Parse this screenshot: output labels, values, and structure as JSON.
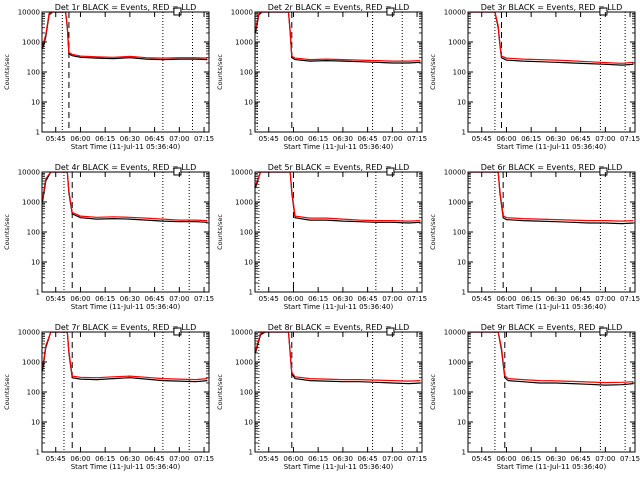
{
  "chart_data": [
    {
      "type": "line",
      "title": "Det 1r BLACK = Events, RED = LLD",
      "xlabel": "Start Time (11-Jul-11 05:36:40)",
      "ylabel": "Counts/sec",
      "yscale": "log",
      "ylim": [
        1,
        10000
      ],
      "xlim": [
        "05:36:40",
        "07:18:00"
      ],
      "xticks": [
        "05:45",
        "06:00",
        "06:15",
        "06:30",
        "06:45",
        "07:00",
        "07:15"
      ],
      "yticks": [
        "1",
        "10",
        "100",
        "1000",
        "10000"
      ],
      "markers": {
        "dotted": [
          "05:49",
          "06:50",
          "07:08"
        ],
        "dashed": [
          "05:53"
        ]
      },
      "series": [
        {
          "color": "#000000",
          "x": [
            "05:37",
            "05:39",
            "05:41",
            "05:43",
            "05:49",
            "05:51",
            "05:52",
            "05:53",
            "05:55",
            "06:00",
            "06:10",
            "06:20",
            "06:30",
            "06:40",
            "06:50",
            "07:00",
            "07:10",
            "07:17"
          ],
          "values": [
            600,
            1500,
            8000,
            10000,
            10000,
            10000,
            3000,
            400,
            350,
            310,
            290,
            280,
            300,
            270,
            260,
            270,
            270,
            260
          ]
        },
        {
          "color": "#ff0000",
          "x": [
            "05:37",
            "05:39",
            "05:41",
            "05:43",
            "05:49",
            "05:51",
            "05:52",
            "05:53",
            "05:55",
            "06:00",
            "06:10",
            "06:20",
            "06:30",
            "06:40",
            "06:50",
            "07:00",
            "07:10",
            "07:17"
          ],
          "values": [
            700,
            1800,
            9000,
            10000,
            10000,
            10000,
            3500,
            450,
            390,
            340,
            320,
            310,
            330,
            300,
            290,
            300,
            300,
            290
          ]
        }
      ]
    },
    {
      "type": "line",
      "title": "Det 2r BLACK = Events, RED = LLD",
      "xlabel": "Start Time (11-Jul-11 05:36:40)",
      "ylabel": "Counts/sec",
      "yscale": "log",
      "ylim": [
        1,
        10000
      ],
      "xlim": [
        "05:36:40",
        "07:18:00"
      ],
      "xticks": [
        "05:45",
        "06:00",
        "06:15",
        "06:30",
        "06:45",
        "07:00",
        "07:15"
      ],
      "yticks": [
        "1",
        "10",
        "100",
        "1000",
        "10000"
      ],
      "markers": {
        "dotted": [
          "05:38",
          "06:48",
          "07:06"
        ],
        "dashed": [
          "05:59"
        ]
      },
      "series": [
        {
          "color": "#000000",
          "x": [
            "05:37",
            "05:39",
            "05:41",
            "05:44",
            "05:55",
            "05:57",
            "05:58",
            "05:59",
            "06:01",
            "06:10",
            "06:20",
            "06:30",
            "06:40",
            "06:50",
            "07:00",
            "07:10",
            "07:17"
          ],
          "values": [
            2000,
            8000,
            10000,
            10000,
            10000,
            10000,
            2000,
            300,
            260,
            230,
            240,
            230,
            220,
            210,
            200,
            200,
            210
          ]
        },
        {
          "color": "#ff0000",
          "x": [
            "05:37",
            "05:39",
            "05:41",
            "05:44",
            "05:55",
            "05:57",
            "05:58",
            "05:59",
            "06:01",
            "06:10",
            "06:20",
            "06:30",
            "06:40",
            "06:50",
            "07:00",
            "07:10",
            "07:17"
          ],
          "values": [
            2500,
            9000,
            10000,
            10000,
            10000,
            10000,
            2300,
            340,
            290,
            260,
            270,
            260,
            250,
            240,
            230,
            230,
            240
          ]
        }
      ]
    },
    {
      "type": "line",
      "title": "Det 3r BLACK = Events, RED = LLD",
      "xlabel": "Start Time (11-Jul-11 05:36:40)",
      "ylabel": "Counts/sec",
      "yscale": "log",
      "ylim": [
        1,
        10000
      ],
      "xlim": [
        "05:36:40",
        "07:18:00"
      ],
      "xticks": [
        "05:45",
        "06:00",
        "06:15",
        "06:30",
        "06:45",
        "07:00",
        "07:15"
      ],
      "yticks": [
        "1",
        "10",
        "100",
        "1000",
        "10000"
      ],
      "markers": {
        "dotted": [
          "05:53",
          "06:57",
          "07:12"
        ],
        "dashed": [
          "05:57"
        ]
      },
      "series": [
        {
          "color": "#000000",
          "x": [
            "05:37",
            "05:45",
            "05:50",
            "05:53",
            "05:55",
            "05:56",
            "05:57",
            "06:00",
            "06:10",
            "06:20",
            "06:30",
            "06:40",
            "06:50",
            "07:00",
            "07:10",
            "07:17"
          ],
          "values": [
            10000,
            10000,
            10000,
            10000,
            3000,
            800,
            300,
            250,
            230,
            220,
            210,
            200,
            190,
            180,
            170,
            180
          ]
        },
        {
          "color": "#ff0000",
          "x": [
            "05:37",
            "05:45",
            "05:50",
            "05:53",
            "05:55",
            "05:56",
            "05:57",
            "06:00",
            "06:10",
            "06:20",
            "06:30",
            "06:40",
            "06:50",
            "07:00",
            "07:10",
            "07:17"
          ],
          "values": [
            10000,
            10000,
            10000,
            10000,
            3500,
            900,
            340,
            290,
            270,
            260,
            250,
            235,
            220,
            205,
            195,
            210
          ]
        }
      ]
    },
    {
      "type": "line",
      "title": "Det 4r BLACK = Events, RED = LLD",
      "xlabel": "Start Time (11-Jul-11 05:36:40)",
      "ylabel": "Counts/sec",
      "yscale": "log",
      "ylim": [
        1,
        10000
      ],
      "xlim": [
        "05:36:40",
        "07:18:00"
      ],
      "xticks": [
        "05:45",
        "06:00",
        "06:15",
        "06:30",
        "06:45",
        "07:00",
        "07:15"
      ],
      "yticks": [
        "1",
        "10",
        "100",
        "1000",
        "10000"
      ],
      "markers": {
        "dotted": [
          "05:50",
          "06:50",
          "07:06"
        ],
        "dashed": [
          "05:55"
        ]
      },
      "series": [
        {
          "color": "#000000",
          "x": [
            "05:37",
            "05:39",
            "05:42",
            "05:50",
            "05:52",
            "05:53",
            "05:55",
            "06:00",
            "06:10",
            "06:20",
            "06:30",
            "06:40",
            "06:50",
            "07:00",
            "07:10",
            "07:17"
          ],
          "values": [
            1000,
            5000,
            10000,
            10000,
            10000,
            2000,
            400,
            300,
            270,
            280,
            270,
            250,
            230,
            220,
            220,
            210
          ]
        },
        {
          "color": "#ff0000",
          "x": [
            "05:37",
            "05:39",
            "05:42",
            "05:50",
            "05:52",
            "05:53",
            "05:55",
            "06:00",
            "06:10",
            "06:20",
            "06:30",
            "06:40",
            "06:50",
            "07:00",
            "07:10",
            "07:17"
          ],
          "values": [
            1200,
            6000,
            10000,
            10000,
            10000,
            2300,
            450,
            340,
            310,
            320,
            310,
            290,
            270,
            250,
            250,
            240
          ]
        }
      ]
    },
    {
      "type": "line",
      "title": "Det 5r BLACK = Events, RED = LLD",
      "xlabel": "Start Time (11-Jul-11 05:36:40)",
      "ylabel": "Counts/sec",
      "yscale": "log",
      "ylim": [
        1,
        10000
      ],
      "xlim": [
        "05:36:40",
        "07:18:00"
      ],
      "xticks": [
        "05:45",
        "06:00",
        "06:15",
        "06:30",
        "06:45",
        "07:00",
        "07:15"
      ],
      "yticks": [
        "1",
        "10",
        "100",
        "1000",
        "10000"
      ],
      "markers": {
        "dotted": [
          "05:39",
          "06:50",
          "07:06"
        ],
        "dashed": [
          "06:00"
        ]
      },
      "series": [
        {
          "color": "#000000",
          "x": [
            "05:37",
            "05:40",
            "05:43",
            "05:55",
            "05:58",
            "05:59",
            "06:01",
            "06:10",
            "06:20",
            "06:30",
            "06:40",
            "06:50",
            "07:00",
            "07:10",
            "07:17"
          ],
          "values": [
            3000,
            10000,
            10000,
            10000,
            10000,
            2000,
            300,
            250,
            250,
            230,
            220,
            210,
            210,
            200,
            210
          ]
        },
        {
          "color": "#ff0000",
          "x": [
            "05:37",
            "05:40",
            "05:43",
            "05:55",
            "05:58",
            "05:59",
            "06:01",
            "06:10",
            "06:20",
            "06:30",
            "06:40",
            "06:50",
            "07:00",
            "07:10",
            "07:17"
          ],
          "values": [
            3500,
            10000,
            10000,
            10000,
            10000,
            2300,
            340,
            290,
            290,
            270,
            250,
            240,
            240,
            230,
            240
          ]
        }
      ]
    },
    {
      "type": "line",
      "title": "Det 6r BLACK = Events, RED = LLD",
      "xlabel": "Start Time (11-Jul-11 05:36:40)",
      "ylabel": "Counts/sec",
      "yscale": "log",
      "ylim": [
        1,
        10000
      ],
      "xlim": [
        "05:36:40",
        "07:18:00"
      ],
      "xticks": [
        "05:45",
        "06:00",
        "06:15",
        "06:30",
        "06:45",
        "07:00",
        "07:15"
      ],
      "yticks": [
        "1",
        "10",
        "100",
        "1000",
        "10000"
      ],
      "markers": {
        "dotted": [
          "05:53",
          "06:57",
          "07:12"
        ],
        "dashed": [
          "05:58"
        ]
      },
      "series": [
        {
          "color": "#000000",
          "x": [
            "05:37",
            "05:45",
            "05:53",
            "05:55",
            "05:56",
            "05:58",
            "06:00",
            "06:10",
            "06:20",
            "06:30",
            "06:40",
            "06:50",
            "07:00",
            "07:10",
            "07:17"
          ],
          "values": [
            10000,
            10000,
            10000,
            10000,
            2000,
            300,
            260,
            240,
            230,
            220,
            210,
            200,
            200,
            190,
            200
          ]
        },
        {
          "color": "#ff0000",
          "x": [
            "05:37",
            "05:45",
            "05:53",
            "05:55",
            "05:56",
            "05:58",
            "06:00",
            "06:10",
            "06:20",
            "06:30",
            "06:40",
            "06:50",
            "07:00",
            "07:10",
            "07:17"
          ],
          "values": [
            10000,
            10000,
            10000,
            10000,
            2300,
            350,
            300,
            280,
            270,
            260,
            250,
            240,
            240,
            230,
            240
          ]
        }
      ]
    },
    {
      "type": "line",
      "title": "Det 7r BLACK = Events, RED = LLD",
      "xlabel": "Start Time (11-Jul-11 05:36:40)",
      "ylabel": "Counts/sec",
      "yscale": "log",
      "ylim": [
        1,
        10000
      ],
      "xlim": [
        "05:36:40",
        "07:18:00"
      ],
      "xticks": [
        "05:45",
        "06:00",
        "06:15",
        "06:30",
        "06:45",
        "07:00",
        "07:15"
      ],
      "yticks": [
        "1",
        "10",
        "100",
        "1000",
        "10000"
      ],
      "markers": {
        "dotted": [
          "05:50",
          "06:50",
          "07:06"
        ],
        "dashed": [
          "05:55"
        ]
      },
      "series": [
        {
          "color": "#000000",
          "x": [
            "05:37",
            "05:39",
            "05:42",
            "05:50",
            "05:52",
            "05:53",
            "05:55",
            "06:00",
            "06:10",
            "06:20",
            "06:30",
            "06:40",
            "06:50",
            "07:00",
            "07:10",
            "07:17"
          ],
          "values": [
            500,
            3000,
            10000,
            10000,
            10000,
            2000,
            300,
            270,
            260,
            280,
            300,
            270,
            240,
            230,
            220,
            240
          ]
        },
        {
          "color": "#ff0000",
          "x": [
            "05:37",
            "05:39",
            "05:42",
            "05:50",
            "05:52",
            "05:53",
            "05:55",
            "06:00",
            "06:10",
            "06:20",
            "06:30",
            "06:40",
            "06:50",
            "07:00",
            "07:10",
            "07:17"
          ],
          "values": [
            600,
            3500,
            10000,
            10000,
            10000,
            2300,
            340,
            310,
            300,
            320,
            340,
            310,
            280,
            270,
            260,
            280
          ]
        }
      ]
    },
    {
      "type": "line",
      "title": "Det 8r BLACK = Events, RED = LLD",
      "xlabel": "Start Time (11-Jul-11 05:36:40)",
      "ylabel": "Counts/sec",
      "yscale": "log",
      "ylim": [
        1,
        10000
      ],
      "xlim": [
        "05:36:40",
        "07:18:00"
      ],
      "xticks": [
        "05:45",
        "06:00",
        "06:15",
        "06:30",
        "06:45",
        "07:00",
        "07:15"
      ],
      "yticks": [
        "1",
        "10",
        "100",
        "1000",
        "10000"
      ],
      "markers": {
        "dotted": [
          "05:39",
          "06:48",
          "07:06"
        ],
        "dashed": [
          "05:59"
        ]
      },
      "series": [
        {
          "color": "#000000",
          "x": [
            "05:37",
            "05:40",
            "05:43",
            "05:55",
            "05:57",
            "05:59",
            "06:01",
            "06:10",
            "06:20",
            "06:30",
            "06:40",
            "06:50",
            "07:00",
            "07:10",
            "07:17"
          ],
          "values": [
            2000,
            8000,
            10000,
            10000,
            10000,
            400,
            280,
            240,
            230,
            220,
            220,
            210,
            200,
            190,
            200
          ]
        },
        {
          "color": "#ff0000",
          "x": [
            "05:37",
            "05:40",
            "05:43",
            "05:55",
            "05:57",
            "05:59",
            "06:01",
            "06:10",
            "06:20",
            "06:30",
            "06:40",
            "06:50",
            "07:00",
            "07:10",
            "07:17"
          ],
          "values": [
            2300,
            9000,
            10000,
            10000,
            10000,
            450,
            320,
            280,
            270,
            260,
            260,
            250,
            240,
            230,
            240
          ]
        }
      ]
    },
    {
      "type": "line",
      "title": "Det 9r BLACK = Events, RED = LLD",
      "xlabel": "Start Time (11-Jul-11 05:36:40)",
      "ylabel": "Counts/sec",
      "yscale": "log",
      "ylim": [
        1,
        10000
      ],
      "xlim": [
        "05:36:40",
        "07:18:00"
      ],
      "xticks": [
        "05:45",
        "06:00",
        "06:15",
        "06:30",
        "06:45",
        "07:00",
        "07:15"
      ],
      "yticks": [
        "1",
        "10",
        "100",
        "1000",
        "10000"
      ],
      "markers": {
        "dotted": [
          "05:53",
          "06:57",
          "07:12"
        ],
        "dashed": [
          "05:59"
        ]
      },
      "series": [
        {
          "color": "#000000",
          "x": [
            "05:37",
            "05:45",
            "05:53",
            "05:55",
            "05:57",
            "05:59",
            "06:01",
            "06:10",
            "06:20",
            "06:30",
            "06:40",
            "06:50",
            "07:00",
            "07:10",
            "07:17"
          ],
          "values": [
            10000,
            10000,
            10000,
            10000,
            2500,
            300,
            240,
            220,
            200,
            200,
            190,
            180,
            170,
            175,
            190
          ]
        },
        {
          "color": "#ff0000",
          "x": [
            "05:37",
            "05:45",
            "05:53",
            "05:55",
            "05:57",
            "05:59",
            "06:01",
            "06:10",
            "06:20",
            "06:30",
            "06:40",
            "06:50",
            "07:00",
            "07:10",
            "07:17"
          ],
          "values": [
            10000,
            10000,
            10000,
            10000,
            3000,
            350,
            280,
            260,
            240,
            235,
            225,
            215,
            205,
            210,
            220
          ]
        }
      ]
    }
  ]
}
